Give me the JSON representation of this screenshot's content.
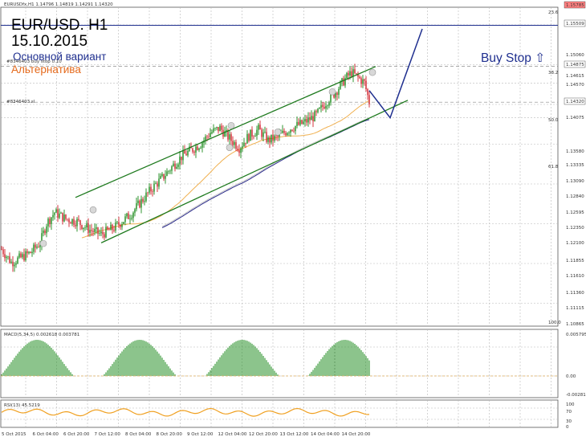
{
  "symbol_header": "EURUSDfx,H1  1.14796 1.14819 1.14291 1.14320",
  "annotations": {
    "title": "EUR/USD. H1",
    "date": "15.10.2015",
    "main_variant": "Основной вариант",
    "alternative": "Альтернатива",
    "buy_stop": "Buy Stop ⇧"
  },
  "order_labels": {
    "buy_stop": "#8346403 buy stop 0.10",
    "order2": "#8346403 sl"
  },
  "price_scale": [
    "1.15785",
    "1.15509",
    "1.15060",
    "1.14875",
    "1.14615",
    "1.14570",
    "1.14320",
    "1.14075",
    "1.13580",
    "1.13335",
    "1.13090",
    "1.12840",
    "1.12595",
    "1.12350",
    "1.12100",
    "1.11855",
    "1.11610",
    "1.11360",
    "1.11115",
    "1.10865"
  ],
  "fib_levels": [
    "23.6",
    "38.2",
    "50.0",
    "61.8",
    "100.0"
  ],
  "highlight_prices": {
    "top": "1.15785",
    "line1": "1.15509",
    "line2": "1.14875",
    "current": "1.14320"
  },
  "macd": {
    "label": "MACD(5,34,5) 0.002618 0.003781",
    "scale": [
      "0.005795",
      "0.00",
      "-0.002811"
    ]
  },
  "rsi": {
    "label": "RSI(13) 45.5219",
    "scale": [
      "100",
      "70",
      "30",
      "0"
    ]
  },
  "time_axis": [
    "5 Oct 2015",
    "6 Oct 04:00",
    "6 Oct 20:00",
    "7 Oct 12:00",
    "8 Oct 04:00",
    "8 Oct 20:00",
    "9 Oct 12:00",
    "12 Oct 04:00",
    "12 Oct 20:00",
    "13 Oct 12:00",
    "14 Oct 04:00",
    "14 Oct 20:00"
  ],
  "colors": {
    "bull": "#1a8a1a",
    "bear": "#d0202a",
    "channel": "#1e7a1e",
    "ma_fast": "#f0b050",
    "ma_slow": "#2a2a8a",
    "ma_grey": "#c8c8c8",
    "forecast": "#1f2f8f",
    "rsi": "#f0a020"
  },
  "chart_data": {
    "type": "candlestick",
    "instrument": "EURUSD",
    "timeframe": "H1",
    "ylim": [
      1.10865,
      1.15785
    ],
    "close_path": [
      [
        0,
        1.1205
      ],
      [
        6,
        1.1185
      ],
      [
        12,
        1.1192
      ],
      [
        18,
        1.12
      ],
      [
        24,
        1.1215
      ],
      [
        28,
        1.1245
      ],
      [
        33,
        1.1262
      ],
      [
        40,
        1.1252
      ],
      [
        47,
        1.1248
      ],
      [
        55,
        1.1235
      ],
      [
        62,
        1.1228
      ],
      [
        70,
        1.1238
      ],
      [
        80,
        1.1258
      ],
      [
        88,
        1.1282
      ],
      [
        94,
        1.13
      ],
      [
        100,
        1.1315
      ],
      [
        106,
        1.1332
      ],
      [
        112,
        1.1348
      ],
      [
        118,
        1.1358
      ],
      [
        124,
        1.1368
      ],
      [
        130,
        1.1385
      ],
      [
        136,
        1.1392
      ],
      [
        142,
        1.1376
      ],
      [
        148,
        1.1362
      ],
      [
        154,
        1.138
      ],
      [
        160,
        1.139
      ],
      [
        166,
        1.1373
      ],
      [
        172,
        1.1378
      ],
      [
        180,
        1.1392
      ],
      [
        188,
        1.14
      ],
      [
        196,
        1.1412
      ],
      [
        202,
        1.1432
      ],
      [
        208,
        1.1448
      ],
      [
        214,
        1.1468
      ],
      [
        218,
        1.1478
      ],
      [
        222,
        1.147
      ],
      [
        226,
        1.1462
      ],
      [
        229,
        1.1432
      ]
    ],
    "channel": {
      "upper": [
        [
          46,
          1.1285
        ],
        [
          233,
          1.1487
        ]
      ],
      "lower": [
        [
          62,
          1.1215
        ],
        [
          253,
          1.1435
        ]
      ]
    },
    "forecast": [
      [
        229,
        1.145
      ],
      [
        242,
        1.1408
      ],
      [
        262,
        1.1545
      ]
    ]
  }
}
